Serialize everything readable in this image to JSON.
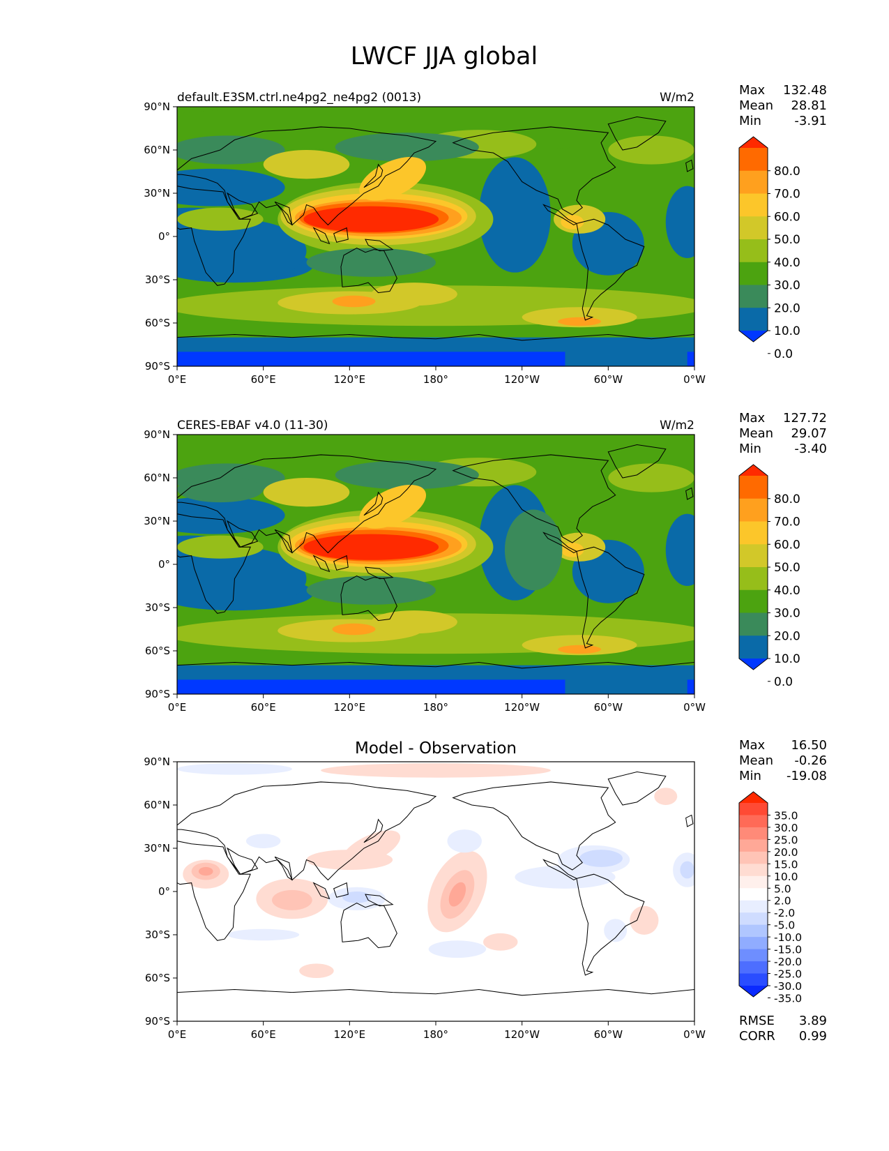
{
  "title": "LWCF JJA global",
  "panels": [
    {
      "id": "test",
      "label_left": "default.E3SM.ctrl.ne4pg2_ne4pg2 (0013)",
      "label_right": "W/m2",
      "stats": [
        {
          "name": "Max",
          "value": "132.48"
        },
        {
          "name": "Mean",
          "value": "28.81"
        },
        {
          "name": "Min",
          "value": "-3.91"
        }
      ],
      "colorbar": {
        "labels": [
          "80.0",
          "70.0",
          "60.0",
          "50.0",
          "40.0",
          "30.0",
          "20.0",
          "10.0",
          "0.0"
        ],
        "colors": [
          "#ff2a00",
          "#ff6a00",
          "#ffa01e",
          "#fcc62a",
          "#d2c829",
          "#96be1a",
          "#4ca310",
          "#3a8a5a",
          "#0a6aa8",
          "#0038ff"
        ]
      }
    },
    {
      "id": "ref",
      "label_left": "CERES-EBAF v4.0 (11-30)",
      "label_right": "W/m2",
      "stats": [
        {
          "name": "Max",
          "value": "127.72"
        },
        {
          "name": "Mean",
          "value": "29.07"
        },
        {
          "name": "Min",
          "value": "-3.40"
        }
      ],
      "colorbar": {
        "labels": [
          "80.0",
          "70.0",
          "60.0",
          "50.0",
          "40.0",
          "30.0",
          "20.0",
          "10.0",
          "0.0"
        ],
        "colors": [
          "#ff2a00",
          "#ff6a00",
          "#ffa01e",
          "#fcc62a",
          "#d2c829",
          "#96be1a",
          "#4ca310",
          "#3a8a5a",
          "#0a6aa8",
          "#0038ff"
        ]
      }
    },
    {
      "id": "diff",
      "subtitle": "Model - Observation",
      "stats": [
        {
          "name": "Max",
          "value": "16.50"
        },
        {
          "name": "Mean",
          "value": "-0.26"
        },
        {
          "name": "Min",
          "value": "-19.08"
        }
      ],
      "extra_stats": [
        {
          "name": "RMSE",
          "value": "3.89"
        },
        {
          "name": "CORR",
          "value": "0.99"
        }
      ],
      "colorbar": {
        "labels": [
          "35.0",
          "30.0",
          "25.0",
          "20.0",
          "15.0",
          "10.0",
          "5.0",
          "2.0",
          "-2.0",
          "-5.0",
          "-10.0",
          "-15.0",
          "-20.0",
          "-25.0",
          "-30.0",
          "-35.0"
        ],
        "colors": [
          "#ff2a00",
          "#ff4a34",
          "#ff6a57",
          "#ff8a78",
          "#ffa897",
          "#ffc4b6",
          "#ffdcd2",
          "#fff0ec",
          "#ffffff",
          "#e8eeff",
          "#cfdcff",
          "#b0c6ff",
          "#90acff",
          "#6e8eff",
          "#4d6eff",
          "#2a4dff",
          "#0a2aff"
        ]
      }
    }
  ],
  "axes": {
    "lat_ticks": [
      "90°N",
      "60°N",
      "30°N",
      "0°",
      "30°S",
      "60°S",
      "90°S"
    ],
    "lon_ticks": [
      "0°E",
      "60°E",
      "120°E",
      "180°",
      "120°W",
      "60°W",
      "0°W"
    ]
  }
}
